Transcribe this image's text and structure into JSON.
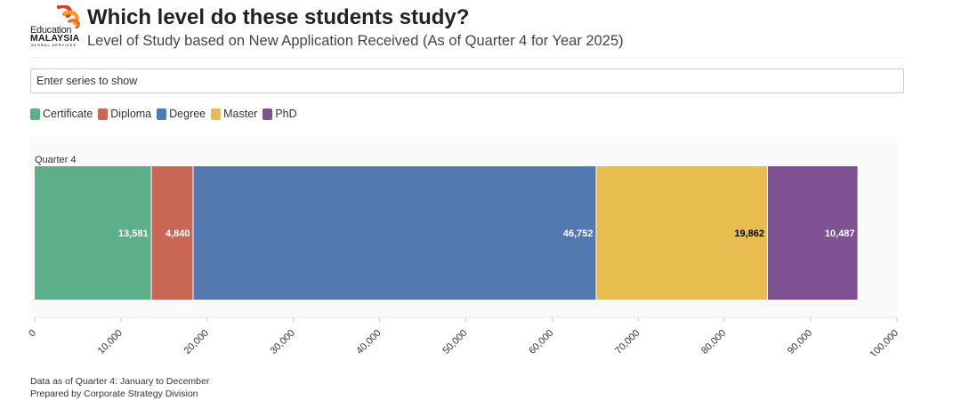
{
  "header": {
    "logo": {
      "line1": "Education",
      "line2": "MALAYSIA",
      "line3": "GLOBAL SERVICES"
    },
    "title": "Which level do these students study?",
    "subtitle": "Level of Study based on New Application Received (As of Quarter 4 for Year 2025)"
  },
  "filter": {
    "placeholder": "Enter series to show"
  },
  "colors": {
    "Certificate": "#5daf8a",
    "Diploma": "#c96655",
    "Degree": "#5478b0",
    "Master": "#e8bd50",
    "PhD": "#7f5193",
    "plot_background": "#fafafa"
  },
  "chart_data": {
    "type": "bar",
    "orientation": "horizontal",
    "stacked": true,
    "categories": [
      "Quarter 4"
    ],
    "series": [
      {
        "name": "Certificate",
        "values": [
          13581
        ],
        "label": "13,581"
      },
      {
        "name": "Diploma",
        "values": [
          4840
        ],
        "label": "4,840"
      },
      {
        "name": "Degree",
        "values": [
          46752
        ],
        "label": "46,752"
      },
      {
        "name": "Master",
        "values": [
          19862
        ],
        "label": "19,862"
      },
      {
        "name": "PhD",
        "values": [
          10487
        ],
        "label": "10,487"
      }
    ],
    "xlim": [
      0,
      100000
    ],
    "x_ticks": [
      0,
      10000,
      20000,
      30000,
      40000,
      50000,
      60000,
      70000,
      80000,
      90000,
      100000
    ],
    "x_tick_labels": [
      "0",
      "10,000",
      "20,000",
      "30,000",
      "40,000",
      "50,000",
      "60,000",
      "70,000",
      "80,000",
      "90,000",
      "100,000"
    ],
    "legend_position": "top-left",
    "grid": false
  },
  "footer": {
    "line1": "Data as of Quarter 4: January to December",
    "line2": "Prepared by Corporate Strategy Division"
  }
}
